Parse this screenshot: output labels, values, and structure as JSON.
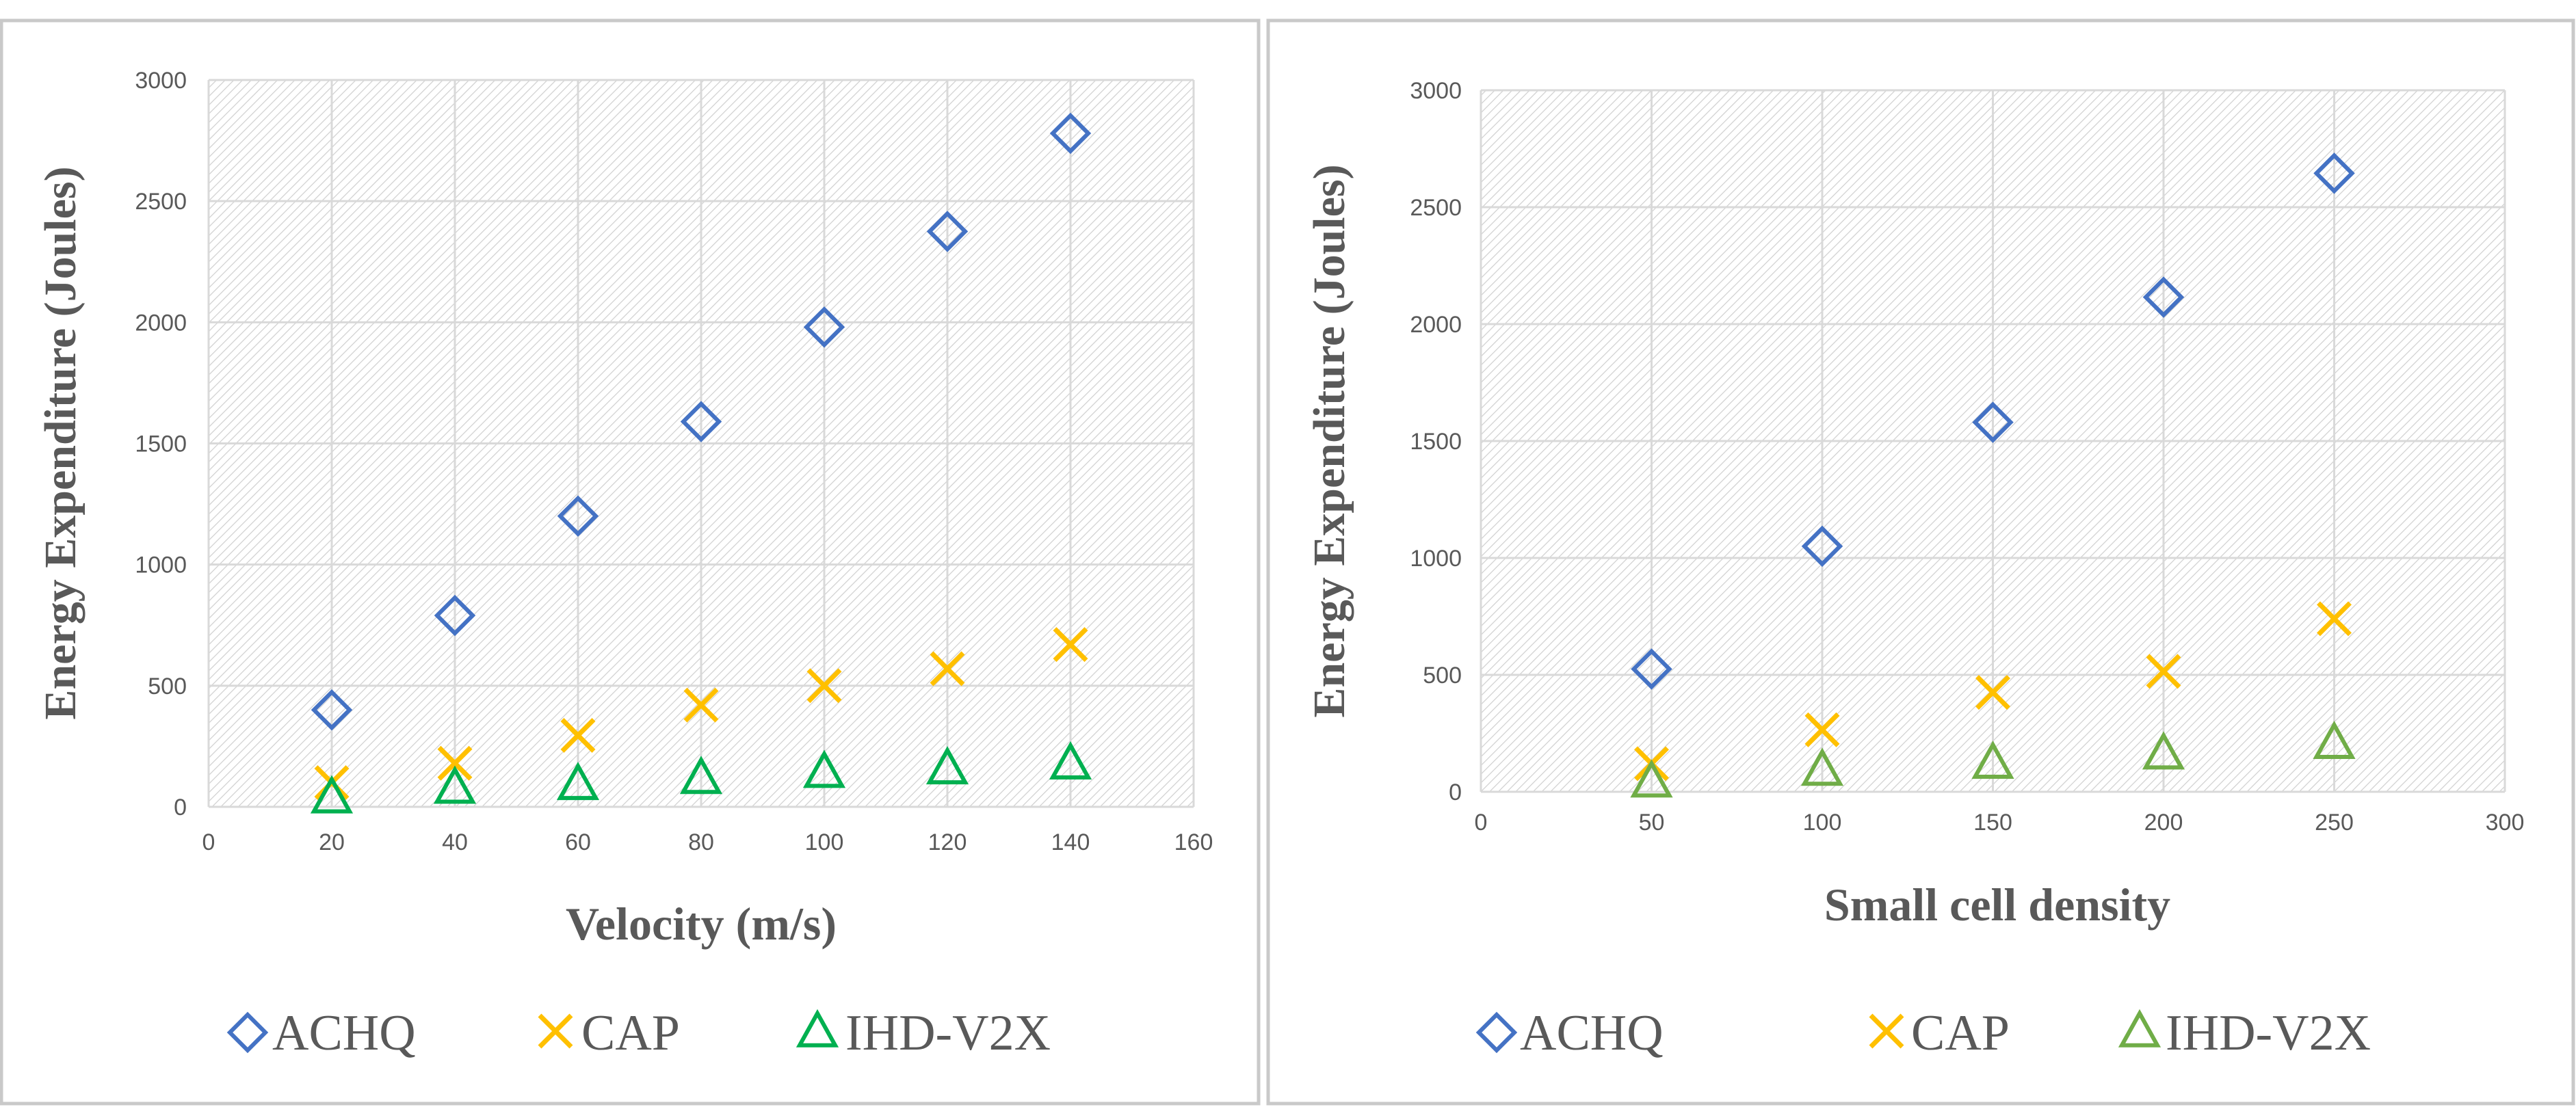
{
  "colors": {
    "achq": "#4472C4",
    "cap": "#FFC000",
    "ihd_left": "#00B050",
    "ihd_right": "#70AD47",
    "grid": "#d9d9d9",
    "hatch": "#cfcfcf",
    "text": "#595959",
    "border": "#c9c9c9"
  },
  "chart_data": [
    {
      "type": "scatter",
      "title": "",
      "xlabel": "Velocity (m/s)",
      "ylabel": "Energy Expenditure  (Joules)",
      "xlim": [
        0,
        160
      ],
      "ylim": [
        0,
        3000
      ],
      "xticks": [
        0,
        20,
        40,
        60,
        80,
        100,
        120,
        140,
        160
      ],
      "yticks": [
        0,
        500,
        1000,
        1500,
        2000,
        2500,
        3000
      ],
      "xtick_labels": [
        "0",
        "20",
        "40",
        "60",
        "80",
        "100",
        "120",
        "140",
        "160"
      ],
      "ytick_labels": [
        "0",
        "500",
        "1000",
        "1500",
        "2000",
        "2500",
        "3000"
      ],
      "legend_position": "bottom",
      "series": [
        {
          "name": "ACHQ",
          "marker": "diamond",
          "color": "#4472C4",
          "x": [
            20,
            40,
            60,
            80,
            100,
            120,
            140
          ],
          "y": [
            400,
            790,
            1200,
            1590,
            1980,
            2375,
            2780
          ]
        },
        {
          "name": "CAP",
          "marker": "x",
          "color": "#FFC000",
          "x": [
            20,
            40,
            60,
            80,
            100,
            120,
            140
          ],
          "y": [
            100,
            180,
            295,
            420,
            500,
            570,
            670
          ]
        },
        {
          "name": "IHD-V2X",
          "marker": "triangle",
          "color": "#00B050",
          "x": [
            20,
            40,
            60,
            80,
            100,
            120,
            140
          ],
          "y": [
            40,
            80,
            95,
            120,
            145,
            160,
            180
          ]
        }
      ]
    },
    {
      "type": "scatter",
      "title": "",
      "xlabel": "Small cell density",
      "ylabel": "Energy Expenditure  (Joules)",
      "xlim": [
        0,
        300
      ],
      "ylim": [
        0,
        3000
      ],
      "xticks": [
        0,
        50,
        100,
        150,
        200,
        250,
        300
      ],
      "yticks": [
        0,
        500,
        1000,
        1500,
        2000,
        2500,
        3000
      ],
      "xtick_labels": [
        "0",
        "50",
        "100",
        "150",
        "200",
        "250",
        "300"
      ],
      "ytick_labels": [
        "0",
        "500",
        "1000",
        "1500",
        "2000",
        "2500",
        "3000"
      ],
      "legend_position": "bottom",
      "series": [
        {
          "name": "ACHQ",
          "marker": "diamond",
          "color": "#4472C4",
          "x": [
            50,
            100,
            150,
            200,
            250
          ],
          "y": [
            525,
            1050,
            1580,
            2115,
            2645
          ]
        },
        {
          "name": "CAP",
          "marker": "x",
          "color": "#FFC000",
          "x": [
            50,
            100,
            150,
            200,
            250
          ],
          "y": [
            120,
            265,
            425,
            515,
            740
          ]
        },
        {
          "name": "IHD-V2X",
          "marker": "triangle",
          "color": "#70AD47",
          "x": [
            50,
            100,
            150,
            200,
            250
          ],
          "y": [
            45,
            95,
            125,
            165,
            210
          ]
        }
      ]
    }
  ]
}
